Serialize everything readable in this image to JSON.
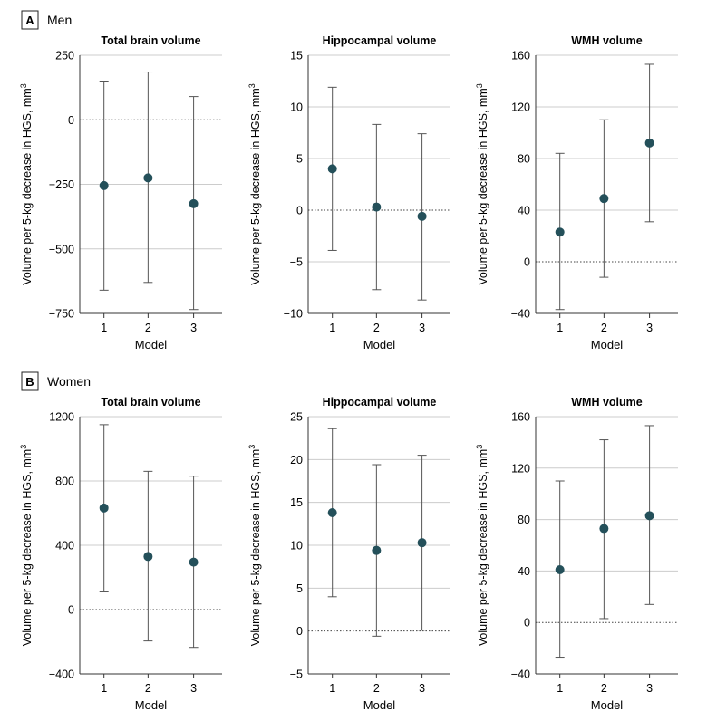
{
  "figure": {
    "panel_a": {
      "letter": "A",
      "name": "Men"
    },
    "panel_b": {
      "letter": "B",
      "name": "Women"
    },
    "ylabel_prefix": "Volume per 5-kg decrease in HGS, mm",
    "ylabel_superscript": "3",
    "colors": {
      "point": "#24505a",
      "errorbar": "#555555",
      "grid": "#cccccc",
      "axis": "#333333",
      "zero": "#444444"
    }
  },
  "chart_data": [
    {
      "type": "scatter",
      "panel": "A",
      "title": "Total brain volume",
      "xlabel": "Model",
      "ylabel": "Volume per 5-kg decrease in HGS, mm3",
      "categories": [
        "1",
        "2",
        "3"
      ],
      "values": [
        -255,
        -225,
        -325
      ],
      "lower": [
        -660,
        -630,
        -735
      ],
      "upper": [
        150,
        185,
        90
      ],
      "ylim": [
        -750,
        250
      ],
      "yticks": [
        250,
        0,
        -250,
        -500,
        -750
      ],
      "ytick_labels": [
        "250",
        "0",
        "−250",
        "−500",
        "−750"
      ]
    },
    {
      "type": "scatter",
      "panel": "A",
      "title": "Hippocampal volume",
      "xlabel": "Model",
      "ylabel": "Volume per 5-kg decrease in HGS, mm3",
      "categories": [
        "1",
        "2",
        "3"
      ],
      "values": [
        4.0,
        0.3,
        -0.6
      ],
      "lower": [
        -3.9,
        -7.7,
        -8.7
      ],
      "upper": [
        11.9,
        8.3,
        7.4
      ],
      "ylim": [
        -10,
        15
      ],
      "yticks": [
        15,
        10,
        5,
        0,
        -5,
        -10
      ],
      "ytick_labels": [
        "15",
        "10",
        "5",
        "0",
        "−5",
        "−10"
      ]
    },
    {
      "type": "scatter",
      "panel": "A",
      "title": "WMH volume",
      "xlabel": "Model",
      "ylabel": "Volume per 5-kg decrease in HGS, mm3",
      "categories": [
        "1",
        "2",
        "3"
      ],
      "values": [
        23,
        49,
        92
      ],
      "lower": [
        -37,
        -12,
        31
      ],
      "upper": [
        84,
        110,
        153
      ],
      "ylim": [
        -40,
        160
      ],
      "yticks": [
        160,
        120,
        80,
        40,
        0,
        -40
      ],
      "ytick_labels": [
        "160",
        "120",
        "80",
        "40",
        "0",
        "−40"
      ]
    },
    {
      "type": "scatter",
      "panel": "B",
      "title": "Total brain volume",
      "xlabel": "Model",
      "ylabel": "Volume per 5-kg decrease in HGS, mm3",
      "categories": [
        "1",
        "2",
        "3"
      ],
      "values": [
        632,
        330,
        295
      ],
      "lower": [
        110,
        -195,
        -235
      ],
      "upper": [
        1150,
        860,
        830
      ],
      "ylim": [
        -400,
        1200
      ],
      "yticks": [
        1200,
        800,
        400,
        0,
        -400
      ],
      "ytick_labels": [
        "1200",
        "800",
        "400",
        "0",
        "−400"
      ]
    },
    {
      "type": "scatter",
      "panel": "B",
      "title": "Hippocampal volume",
      "xlabel": "Model",
      "ylabel": "Volume per 5-kg decrease in HGS, mm3",
      "categories": [
        "1",
        "2",
        "3"
      ],
      "values": [
        13.8,
        9.4,
        10.3
      ],
      "lower": [
        4.0,
        -0.6,
        0.1
      ],
      "upper": [
        23.6,
        19.4,
        20.5
      ],
      "ylim": [
        -5,
        25
      ],
      "yticks": [
        25,
        20,
        15,
        10,
        5,
        0,
        -5
      ],
      "ytick_labels": [
        "25",
        "20",
        "15",
        "10",
        "5",
        "0",
        "−5"
      ]
    },
    {
      "type": "scatter",
      "panel": "B",
      "title": "WMH volume",
      "xlabel": "Model",
      "ylabel": "Volume per 5-kg decrease in HGS, mm3",
      "categories": [
        "1",
        "2",
        "3"
      ],
      "values": [
        41,
        73,
        83
      ],
      "lower": [
        -27,
        3,
        14
      ],
      "upper": [
        110,
        142,
        153
      ],
      "ylim": [
        -40,
        160
      ],
      "yticks": [
        160,
        120,
        80,
        40,
        0,
        -40
      ],
      "ytick_labels": [
        "160",
        "120",
        "80",
        "40",
        "0",
        "−40"
      ]
    }
  ]
}
